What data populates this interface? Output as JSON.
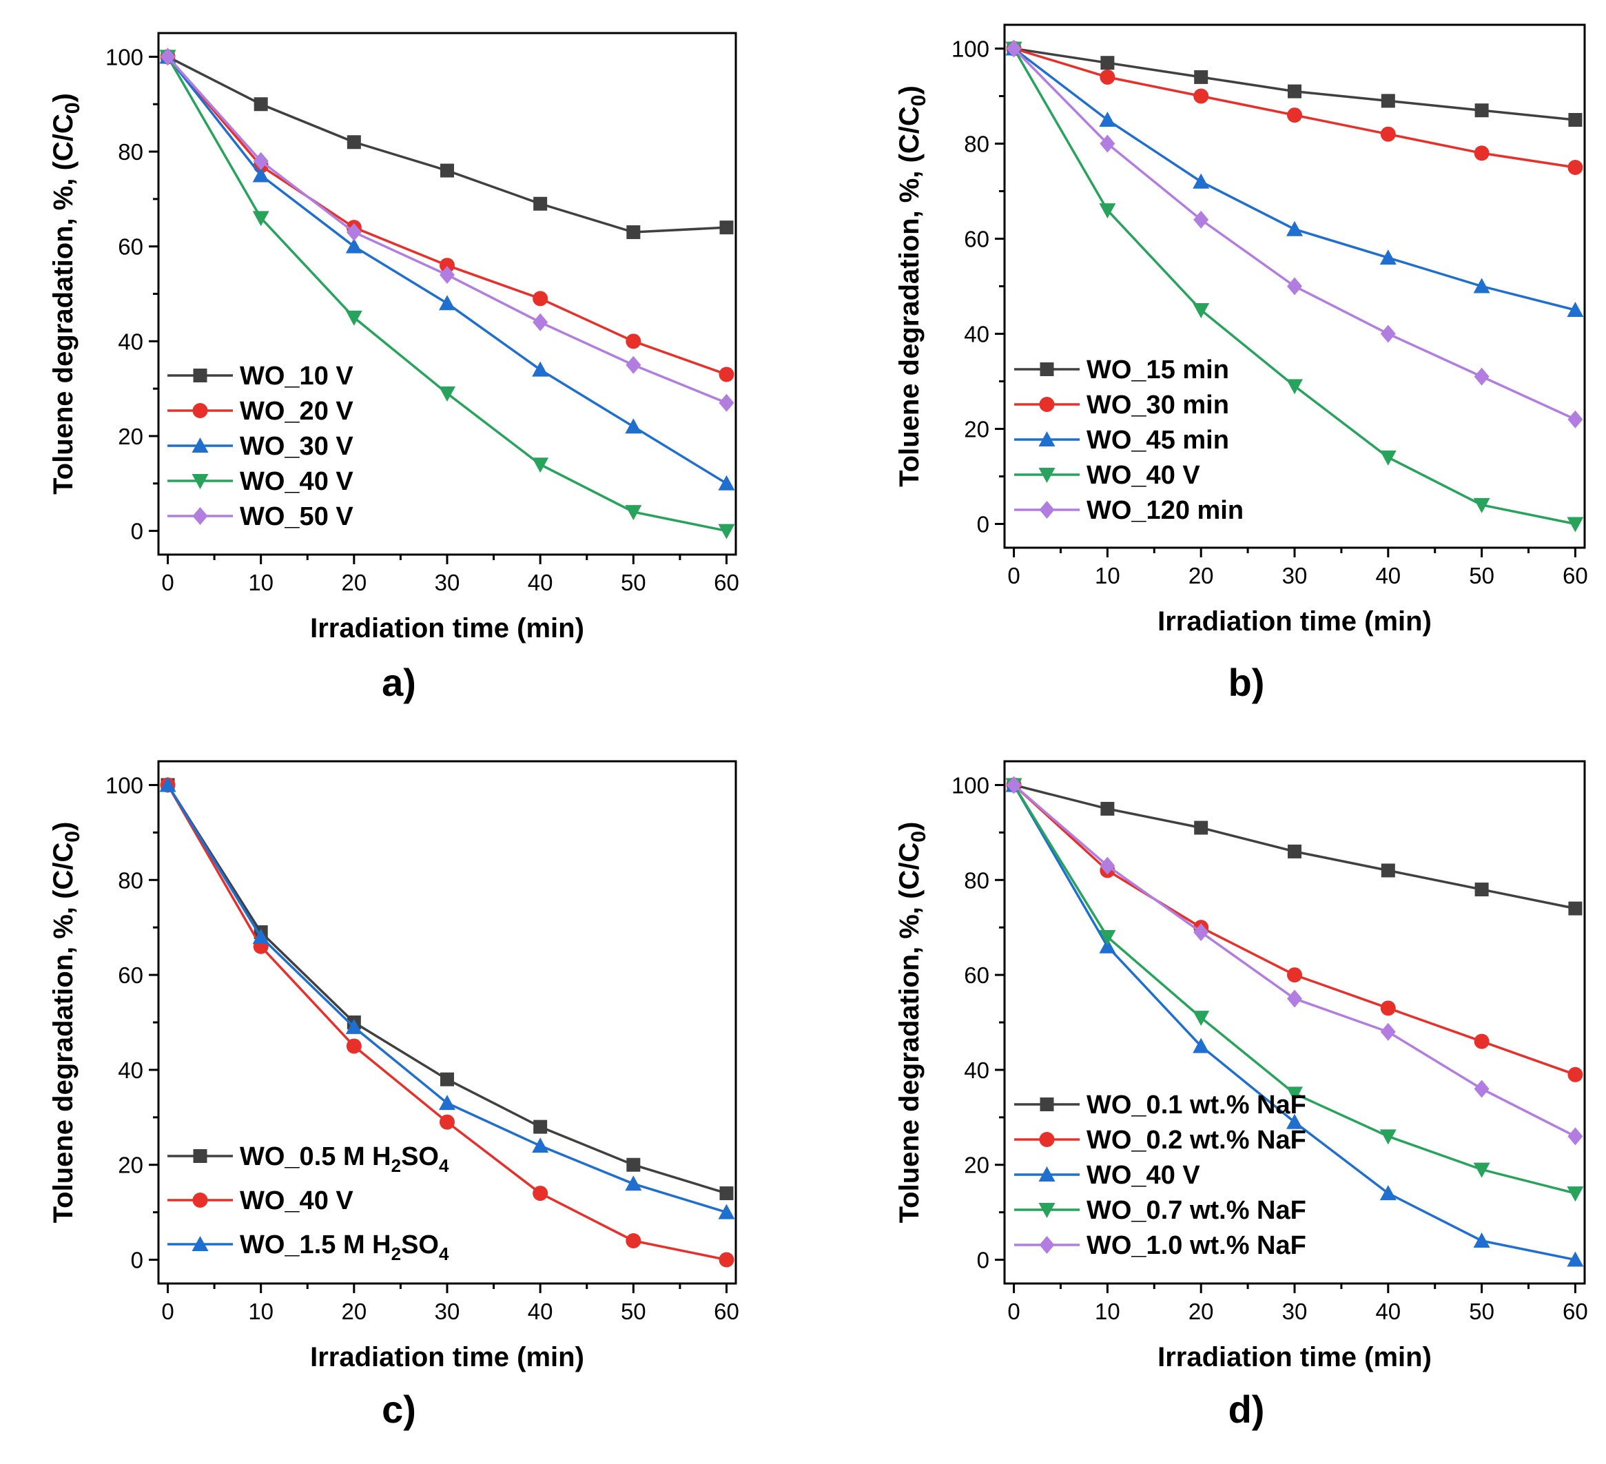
{
  "figure": {
    "colors": {
      "gray": "#404040",
      "red": "#e8302a",
      "blue": "#1f6fd1",
      "green": "#27a35c",
      "purple": "#b27de0"
    }
  },
  "chart_data": [
    {
      "id": "a",
      "panel_label": "a)",
      "type": "line",
      "xlabel": "Irradiation time (min)",
      "ylabel": "Toluene degradation, %, (C/C",
      "ylabel_sub": "0",
      "ylabel_close": ")",
      "xlim": [
        -1,
        61
      ],
      "ylim": [
        -5,
        105
      ],
      "xticks": [
        0,
        10,
        20,
        30,
        40,
        50,
        60
      ],
      "yticks": [
        0,
        20,
        40,
        60,
        80,
        100
      ],
      "x": [
        0,
        10,
        20,
        30,
        40,
        50,
        60
      ],
      "legend": "lower-left",
      "series": [
        {
          "name": "WO_10 V",
          "color": "#404040",
          "marker": "square",
          "values": [
            100,
            90,
            82,
            76,
            69,
            63,
            64
          ]
        },
        {
          "name": "WO_20 V",
          "color": "#e8302a",
          "marker": "circle",
          "values": [
            100,
            77,
            64,
            56,
            49,
            40,
            33
          ]
        },
        {
          "name": "WO_30 V",
          "color": "#1f6fd1",
          "marker": "triangle-up",
          "values": [
            100,
            75,
            60,
            48,
            34,
            22,
            10
          ]
        },
        {
          "name": "WO_40 V",
          "color": "#27a35c",
          "marker": "triangle-down",
          "values": [
            100,
            66,
            45,
            29,
            14,
            4,
            0
          ]
        },
        {
          "name": "WO_50 V",
          "color": "#b27de0",
          "marker": "diamond",
          "values": [
            100,
            78,
            63,
            54,
            44,
            35,
            27
          ]
        }
      ]
    },
    {
      "id": "b",
      "panel_label": "b)",
      "type": "line",
      "xlabel": "Irradiation time (min)",
      "ylabel": "Toluene degradation, %, (C/C",
      "ylabel_sub": "0",
      "ylabel_close": ")",
      "xlim": [
        -1,
        61
      ],
      "ylim": [
        -5,
        105
      ],
      "xticks": [
        0,
        10,
        20,
        30,
        40,
        50,
        60
      ],
      "yticks": [
        0,
        20,
        40,
        60,
        80,
        100
      ],
      "x": [
        0,
        10,
        20,
        30,
        40,
        50,
        60
      ],
      "legend": "lower-left",
      "series": [
        {
          "name": "WO_15 min",
          "color": "#404040",
          "marker": "square",
          "values": [
            100,
            97,
            94,
            91,
            89,
            87,
            85
          ]
        },
        {
          "name": "WO_30 min",
          "color": "#e8302a",
          "marker": "circle",
          "values": [
            100,
            94,
            90,
            86,
            82,
            78,
            75
          ]
        },
        {
          "name": "WO_45 min",
          "color": "#1f6fd1",
          "marker": "triangle-up",
          "values": [
            100,
            85,
            72,
            62,
            56,
            50,
            45
          ]
        },
        {
          "name": "WO_40 V",
          "color": "#27a35c",
          "marker": "triangle-down",
          "values": [
            100,
            66,
            45,
            29,
            14,
            4,
            0
          ]
        },
        {
          "name": "WO_120 min",
          "color": "#b27de0",
          "marker": "diamond",
          "values": [
            100,
            80,
            64,
            50,
            40,
            31,
            22
          ]
        }
      ]
    },
    {
      "id": "c",
      "panel_label": "c)",
      "type": "line",
      "xlabel": "Irradiation time (min)",
      "ylabel": "Toluene degradation, %, (C/C",
      "ylabel_sub": "0",
      "ylabel_close": ")",
      "xlim": [
        -1,
        61
      ],
      "ylim": [
        -5,
        105
      ],
      "xticks": [
        0,
        10,
        20,
        30,
        40,
        50,
        60
      ],
      "yticks": [
        0,
        20,
        40,
        60,
        80,
        100
      ],
      "x": [
        0,
        10,
        20,
        30,
        40,
        50,
        60
      ],
      "legend": "lower-left",
      "series": [
        {
          "name": "WO_0.5 M H",
          "name_sub": "2",
          "name_tail": "SO",
          "name_sub2": "4",
          "color": "#404040",
          "marker": "square",
          "values": [
            100,
            69,
            50,
            38,
            28,
            20,
            14
          ]
        },
        {
          "name": "WO_40 V",
          "color": "#e8302a",
          "marker": "circle",
          "values": [
            100,
            66,
            45,
            29,
            14,
            4,
            0
          ]
        },
        {
          "name": "WO_1.5 M H",
          "name_sub": "2",
          "name_tail": "SO",
          "name_sub2": "4",
          "color": "#1f6fd1",
          "marker": "triangle-up",
          "values": [
            100,
            68,
            49,
            33,
            24,
            16,
            10
          ]
        }
      ]
    },
    {
      "id": "d",
      "panel_label": "d)",
      "type": "line",
      "xlabel": "Irradiation time (min)",
      "ylabel": "Toluene degradation, %, (C/C",
      "ylabel_sub": "0",
      "ylabel_close": ")",
      "xlim": [
        -1,
        61
      ],
      "ylim": [
        -5,
        105
      ],
      "xticks": [
        0,
        10,
        20,
        30,
        40,
        50,
        60
      ],
      "yticks": [
        0,
        20,
        40,
        60,
        80,
        100
      ],
      "x": [
        0,
        10,
        20,
        30,
        40,
        50,
        60
      ],
      "legend": "lower-left",
      "series": [
        {
          "name": "WO_0.1 wt.% NaF",
          "color": "#404040",
          "marker": "square",
          "values": [
            100,
            95,
            91,
            86,
            82,
            78,
            74
          ]
        },
        {
          "name": "WO_0.2 wt.% NaF",
          "color": "#e8302a",
          "marker": "circle",
          "values": [
            100,
            82,
            70,
            60,
            53,
            46,
            39
          ]
        },
        {
          "name": "WO_40 V",
          "color": "#1f6fd1",
          "marker": "triangle-up",
          "values": [
            100,
            66,
            45,
            29,
            14,
            4,
            0
          ]
        },
        {
          "name": "WO_0.7 wt.% NaF",
          "color": "#27a35c",
          "marker": "triangle-down",
          "values": [
            100,
            68,
            51,
            35,
            26,
            19,
            14
          ]
        },
        {
          "name": "WO_1.0 wt.% NaF",
          "color": "#b27de0",
          "marker": "diamond",
          "values": [
            100,
            83,
            69,
            55,
            48,
            36,
            26
          ]
        }
      ]
    }
  ]
}
